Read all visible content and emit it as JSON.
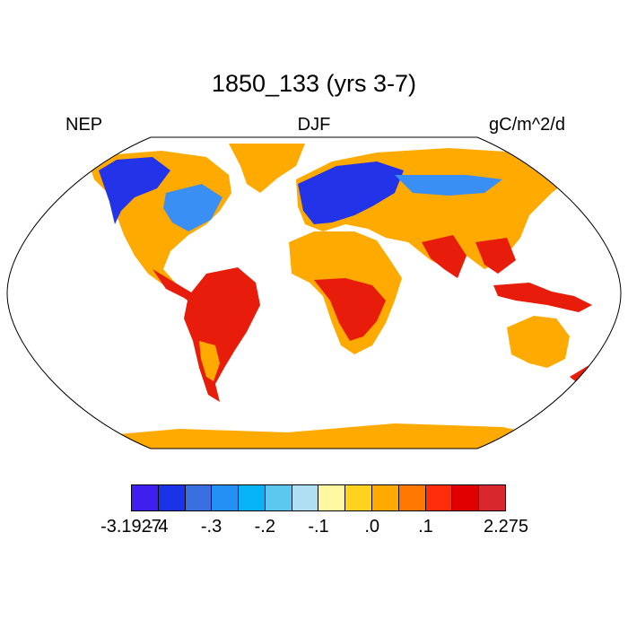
{
  "title": "1850_133 (yrs 3-7)",
  "left_label": "NEP",
  "center_label": "DJF",
  "right_label": "gC/m^2/d",
  "colorbar": {
    "colors": [
      "#3f1ff0",
      "#1a33e6",
      "#3a6fe0",
      "#2390f5",
      "#06b4f5",
      "#5cc8f0",
      "#b0def2",
      "#fff8a0",
      "#ffd21e",
      "#ffaa00",
      "#ff7800",
      "#ff2d0a",
      "#e00000",
      "#d8282d"
    ],
    "tick_labels": [
      "-3.1927",
      "-.4",
      "-.3",
      "-.2",
      "-.1",
      ".0",
      ".1",
      "2.275"
    ]
  },
  "map_colors": {
    "ocean": "#ffffff",
    "land_base": "#ffaa00",
    "boreal_negative": "#2233e8",
    "mid_negative": "#3a8ff5",
    "tropical_positive": "#e81c0a",
    "coastline": "#000000"
  }
}
